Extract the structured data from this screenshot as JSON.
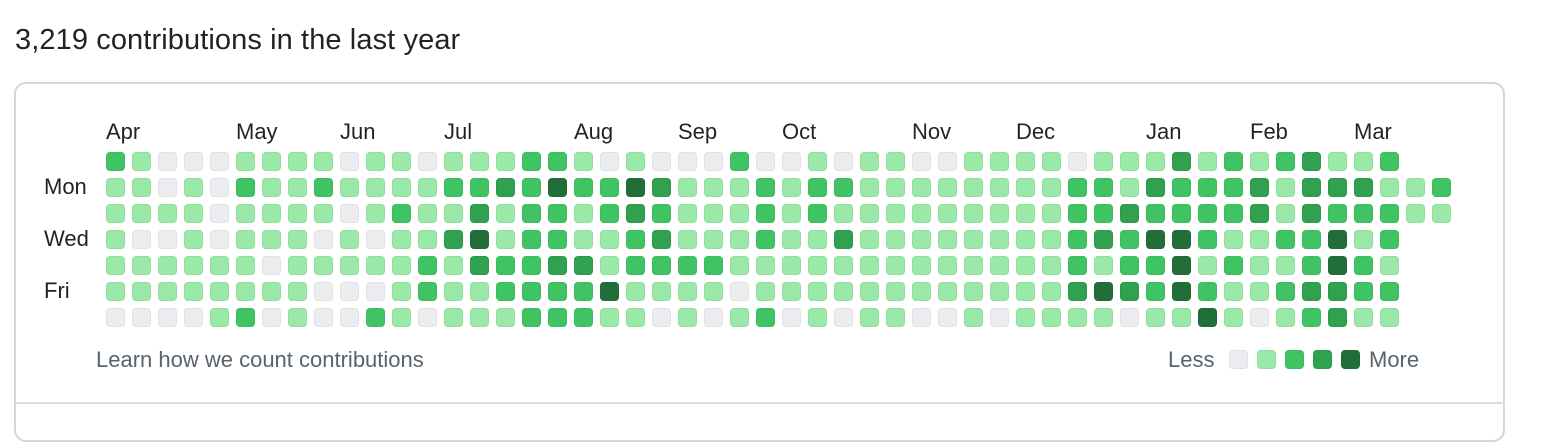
{
  "heading": "3,219 contributions in the last year",
  "months": [
    "Apr",
    "May",
    "Jun",
    "Jul",
    "Aug",
    "Sep",
    "Oct",
    "Nov",
    "Dec",
    "Jan",
    "Feb",
    "Mar"
  ],
  "day_labels": [
    "Mon",
    "Wed",
    "Fri"
  ],
  "footer_link": "Learn how we count contributions",
  "legend": {
    "less": "Less",
    "more": "More",
    "levels": [
      0,
      1,
      2,
      3,
      4
    ]
  },
  "colors": [
    "#ebedf0",
    "#9be9a8",
    "#40c463",
    "#30a14e",
    "#216e39"
  ],
  "contributions": [
    [
      2,
      1,
      0,
      0,
      0,
      1,
      1,
      1,
      1,
      0,
      1,
      1,
      0,
      1,
      1,
      1,
      2,
      2,
      1,
      0,
      1,
      0,
      0,
      0,
      2,
      0,
      0,
      1,
      0,
      1,
      1,
      0,
      0,
      1,
      1,
      1,
      1,
      0,
      1,
      1,
      1,
      3,
      1,
      2,
      1,
      2,
      3,
      1,
      1,
      2
    ],
    [
      1,
      1,
      0,
      1,
      0,
      2,
      1,
      1,
      2,
      1,
      1,
      1,
      1,
      2,
      2,
      3,
      2,
      4,
      2,
      2,
      4,
      3,
      1,
      1,
      1,
      2,
      1,
      2,
      2,
      1,
      1,
      1,
      1,
      1,
      1,
      1,
      1,
      2,
      2,
      1,
      3,
      2,
      2,
      2,
      3,
      1,
      3,
      3,
      3,
      1,
      1,
      2
    ],
    [
      1,
      1,
      1,
      1,
      0,
      1,
      1,
      1,
      1,
      0,
      1,
      2,
      1,
      1,
      3,
      1,
      2,
      2,
      1,
      2,
      3,
      2,
      1,
      1,
      1,
      2,
      1,
      2,
      1,
      1,
      1,
      1,
      1,
      1,
      1,
      1,
      1,
      2,
      2,
      3,
      2,
      2,
      2,
      2,
      3,
      1,
      3,
      2,
      2,
      2,
      1,
      1
    ],
    [
      1,
      0,
      0,
      1,
      0,
      1,
      1,
      1,
      0,
      1,
      0,
      1,
      1,
      3,
      4,
      1,
      2,
      2,
      1,
      1,
      2,
      3,
      1,
      1,
      1,
      2,
      1,
      1,
      3,
      1,
      1,
      1,
      1,
      1,
      1,
      1,
      1,
      2,
      3,
      2,
      4,
      4,
      2,
      1,
      1,
      2,
      2,
      4,
      1,
      2
    ],
    [
      1,
      1,
      1,
      1,
      1,
      1,
      0,
      1,
      1,
      1,
      1,
      1,
      2,
      1,
      3,
      2,
      2,
      3,
      3,
      1,
      2,
      2,
      2,
      2,
      1,
      1,
      1,
      1,
      1,
      1,
      1,
      1,
      1,
      1,
      1,
      1,
      1,
      2,
      1,
      2,
      2,
      4,
      1,
      2,
      1,
      1,
      2,
      4,
      2,
      1
    ],
    [
      1,
      1,
      1,
      1,
      1,
      1,
      1,
      1,
      0,
      0,
      0,
      1,
      2,
      1,
      1,
      2,
      2,
      2,
      2,
      4,
      1,
      1,
      1,
      1,
      0,
      1,
      1,
      1,
      1,
      1,
      1,
      1,
      1,
      1,
      1,
      1,
      1,
      3,
      4,
      3,
      2,
      4,
      2,
      1,
      1,
      2,
      3,
      3,
      2,
      2
    ],
    [
      0,
      0,
      0,
      0,
      1,
      2,
      0,
      1,
      0,
      0,
      2,
      1,
      0,
      1,
      1,
      1,
      2,
      2,
      2,
      1,
      1,
      0,
      1,
      0,
      1,
      2,
      0,
      1,
      0,
      1,
      1,
      0,
      0,
      1,
      0,
      1,
      1,
      1,
      1,
      0,
      1,
      1,
      4,
      1,
      0,
      1,
      2,
      3,
      1,
      1
    ]
  ]
}
